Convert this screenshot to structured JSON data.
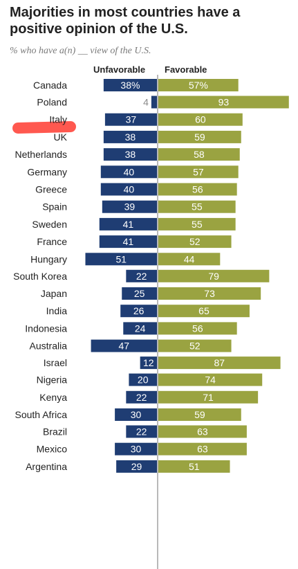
{
  "title": "Majorities in most countries have a positive opinion of the U.S.",
  "subtitle": "% who have a(n) __ view of the U.S.",
  "colors": {
    "unfavorable": "#1f3d73",
    "favorable": "#9aa341",
    "axis": "#8a8a8a",
    "highlight": "#ff3b30"
  },
  "chart_data": {
    "type": "bar",
    "orientation": "horizontal-diverging",
    "series": [
      {
        "name": "Unfavorable",
        "values": [
          38,
          4,
          37,
          38,
          38,
          40,
          40,
          39,
          41,
          41,
          51,
          22,
          25,
          26,
          24,
          47,
          12,
          20,
          22,
          30,
          22,
          30,
          29
        ]
      },
      {
        "name": "Favorable",
        "values": [
          57,
          93,
          60,
          59,
          58,
          57,
          56,
          55,
          55,
          52,
          44,
          79,
          73,
          65,
          56,
          52,
          87,
          74,
          71,
          59,
          63,
          63,
          51
        ]
      }
    ],
    "categories": [
      "Canada",
      "Poland",
      "Italy",
      "UK",
      "Netherlands",
      "Germany",
      "Greece",
      "Spain",
      "Sweden",
      "France",
      "Hungary",
      "South Korea",
      "Japan",
      "India",
      "Indonesia",
      "Australia",
      "Israel",
      "Nigeria",
      "Kenya",
      "South Africa",
      "Brazil",
      "Mexico",
      "Argentina"
    ],
    "labels": {
      "unfavorable": [
        "38%",
        "4",
        "37",
        "38",
        "38",
        "40",
        "40",
        "39",
        "41",
        "41",
        "51",
        "22",
        "25",
        "26",
        "24",
        "47",
        "12",
        "20",
        "22",
        "30",
        "22",
        "30",
        "29"
      ],
      "favorable": [
        "57%",
        "93",
        "60",
        "59",
        "58",
        "57",
        "56",
        "55",
        "55",
        "52",
        "44",
        "79",
        "73",
        "65",
        "56",
        "52",
        "87",
        "74",
        "71",
        "59",
        "63",
        "63",
        "51"
      ]
    },
    "groups": [
      [
        0
      ],
      [
        1,
        2,
        3,
        4,
        5,
        6,
        7,
        8,
        9,
        10
      ],
      [
        11,
        12,
        13,
        14,
        15
      ],
      [
        16
      ],
      [
        17,
        18,
        19
      ],
      [
        20,
        21,
        22
      ]
    ],
    "legend": [
      "Unfavorable",
      "Favorable"
    ],
    "grid": false
  }
}
